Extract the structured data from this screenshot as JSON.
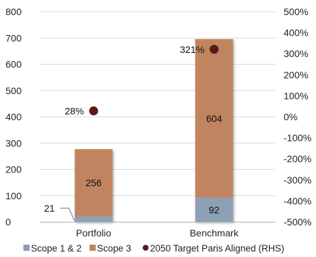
{
  "chart_data": {
    "type": "bar",
    "stacked": true,
    "categories": [
      "Portfolio",
      "Benchmark"
    ],
    "series": [
      {
        "name": "Scope 1 & 2",
        "axis": "left",
        "values": [
          21,
          92
        ],
        "color": "#8ea0b5"
      },
      {
        "name": "Scope 3",
        "axis": "left",
        "values": [
          256,
          604
        ],
        "color": "#c08560"
      },
      {
        "name": "2050 Target Paris Aligned (RHS)",
        "axis": "right",
        "kind": "scatter",
        "values": [
          28,
          321
        ],
        "labels": [
          "28%",
          "321%"
        ],
        "color": "#5a1a1a"
      }
    ],
    "title": "",
    "xlabel": "",
    "ylabel": "",
    "ylim": [
      0,
      800
    ],
    "y_ticks": [
      "0",
      "100",
      "200",
      "300",
      "400",
      "500",
      "600",
      "700",
      "800"
    ],
    "y2lim": [
      -500,
      500
    ],
    "y2_ticks": [
      "-500%",
      "-400%",
      "-300%",
      "-200%",
      "-100%",
      "0%",
      "100%",
      "200%",
      "300%",
      "400%",
      "500%"
    ],
    "grid": true,
    "legend": "bottom"
  }
}
